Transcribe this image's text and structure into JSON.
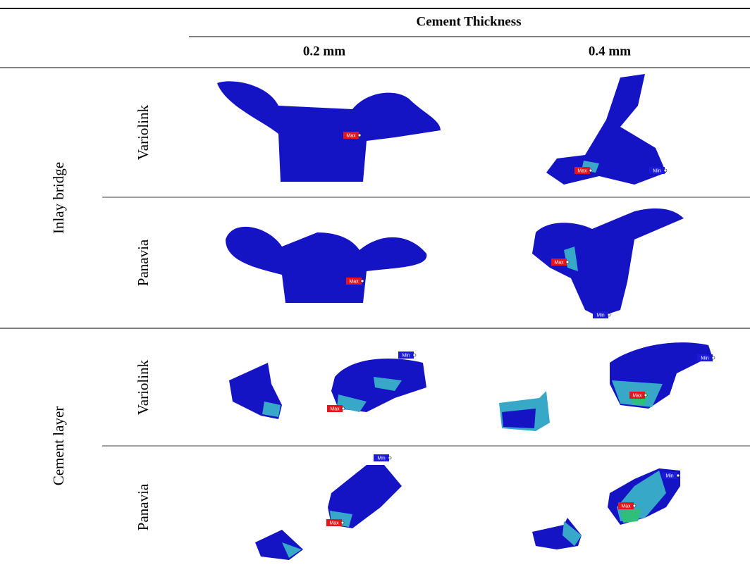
{
  "table": {
    "header": "Cement Thickness",
    "columns": [
      "0.2 mm",
      "0.4 mm"
    ],
    "groups": [
      {
        "label": "Inlay bridge",
        "rows": [
          {
            "label": "Variolink",
            "cells": [
              {
                "tags": [
                  "Max"
                ]
              },
              {
                "tags": [
                  "Max",
                  "Min"
                ]
              }
            ]
          },
          {
            "label": "Panavia",
            "cells": [
              {
                "tags": [
                  "Max"
                ]
              },
              {
                "tags": [
                  "Max",
                  "Min"
                ]
              }
            ]
          }
        ]
      },
      {
        "label": "Cement layer",
        "rows": [
          {
            "label": "Variolink",
            "cells": [
              {
                "tags": [
                  "Min",
                  "Max"
                ]
              },
              {
                "tags": [
                  "Min",
                  "Max"
                ]
              }
            ]
          },
          {
            "label": "Panavia",
            "cells": [
              {
                "tags": [
                  "Min",
                  "Max"
                ]
              },
              {
                "tags": [
                  "Min",
                  "Max"
                ]
              }
            ]
          }
        ]
      }
    ]
  }
}
